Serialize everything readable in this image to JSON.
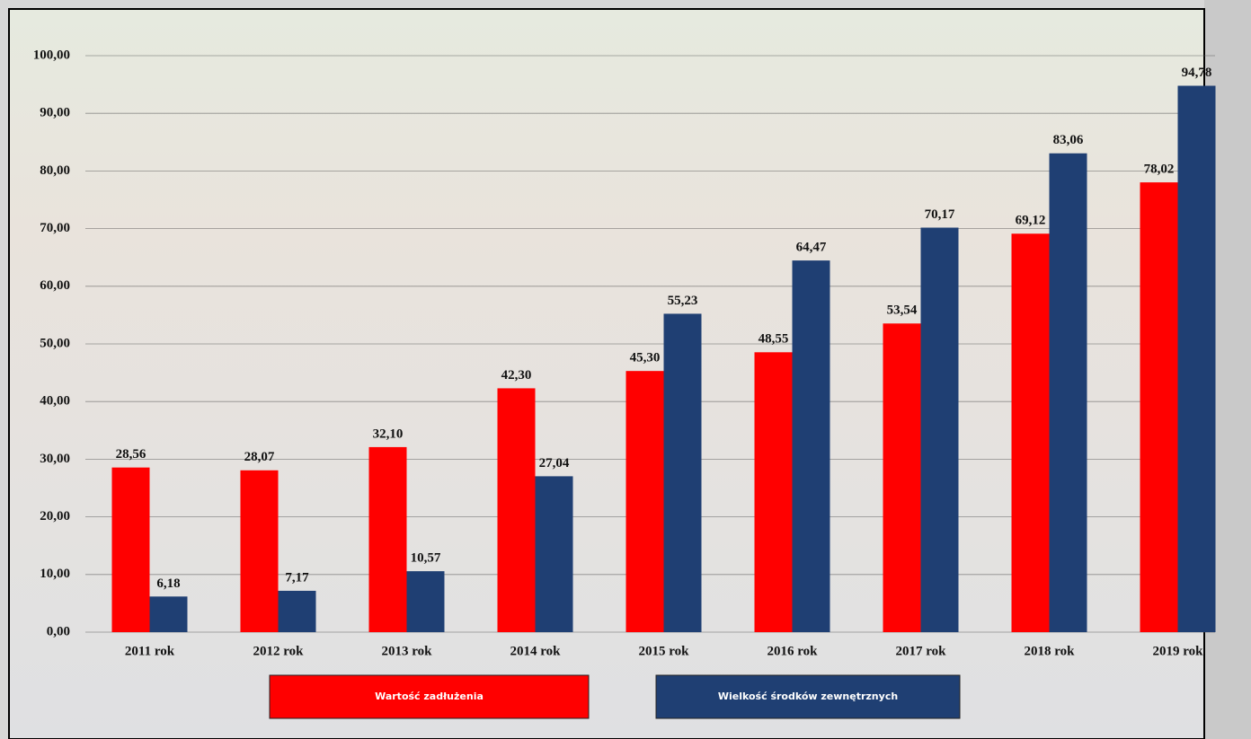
{
  "chart_data": {
    "type": "bar",
    "categories": [
      "2011 rok",
      "2012 rok",
      "2013 rok",
      "2014 rok",
      "2015 rok",
      "2016 rok",
      "2017 rok",
      "2018 rok",
      "2019 rok"
    ],
    "series": [
      {
        "name": "Wartość zadłużenia",
        "color": "#ff0000",
        "values": [
          28.56,
          28.07,
          32.1,
          42.3,
          45.3,
          48.55,
          53.54,
          69.12,
          78.02
        ],
        "value_labels": [
          "28,56",
          "28,07",
          "32,10",
          "42,30",
          "45,30",
          "48,55",
          "53,54",
          "69,12",
          "78,02"
        ]
      },
      {
        "name": "Wielkość środków zewnętrznych",
        "color": "#1f3f73",
        "values": [
          6.18,
          7.17,
          10.57,
          27.04,
          55.23,
          64.47,
          70.17,
          83.06,
          94.78
        ],
        "value_labels": [
          "6,18",
          "7,17",
          "10,57",
          "27,04",
          "55,23",
          "64,47",
          "70,17",
          "83,06",
          "94,78"
        ]
      }
    ],
    "ylim": [
      0,
      100
    ],
    "yticks": [
      {
        "value": 0,
        "label": "0,00"
      },
      {
        "value": 10,
        "label": "10,00"
      },
      {
        "value": 20,
        "label": "20,00"
      },
      {
        "value": 30,
        "label": "30,00"
      },
      {
        "value": 40,
        "label": "40,00"
      },
      {
        "value": 50,
        "label": "50,00"
      },
      {
        "value": 60,
        "label": "60,00"
      },
      {
        "value": 70,
        "label": "70,00"
      },
      {
        "value": 80,
        "label": "80,00"
      },
      {
        "value": 90,
        "label": "90,00"
      },
      {
        "value": 100,
        "label": "100,00"
      }
    ],
    "grid": true,
    "legend": "bottom"
  }
}
